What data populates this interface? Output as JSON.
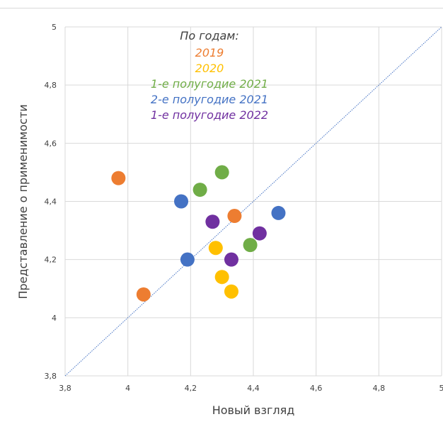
{
  "chart_data": {
    "type": "scatter",
    "title": "",
    "xlabel": "Новый взгляд",
    "ylabel": "Представление о применимости",
    "xlim": [
      3.8,
      5
    ],
    "ylim": [
      3.8,
      5
    ],
    "x_ticks": [
      "3,8",
      "4",
      "4,2",
      "4,4",
      "4,6",
      "4,8",
      "5"
    ],
    "y_ticks": [
      "3,8",
      "4",
      "4,2",
      "4,4",
      "4,6",
      "4,8",
      "5"
    ],
    "grid": true,
    "diagonal_reference_line": true,
    "legend": {
      "placement": "top-center",
      "heading": "По годам:",
      "heading_color": "#404040"
    },
    "series": [
      {
        "name": "2019",
        "color": "#ED7D31",
        "points": [
          {
            "x": 3.97,
            "y": 4.48
          },
          {
            "x": 4.34,
            "y": 4.35
          },
          {
            "x": 4.05,
            "y": 4.08
          }
        ]
      },
      {
        "name": "2020",
        "color": "#FFC000",
        "points": [
          {
            "x": 4.28,
            "y": 4.24
          },
          {
            "x": 4.3,
            "y": 4.14
          },
          {
            "x": 4.33,
            "y": 4.09
          }
        ]
      },
      {
        "name": "1-е полугодие 2021",
        "color": "#70AD47",
        "points": [
          {
            "x": 4.3,
            "y": 4.5
          },
          {
            "x": 4.23,
            "y": 4.44
          },
          {
            "x": 4.39,
            "y": 4.25
          }
        ]
      },
      {
        "name": "2-е полугодие 2021",
        "color": "#4472C4",
        "points": [
          {
            "x": 4.17,
            "y": 4.4
          },
          {
            "x": 4.48,
            "y": 4.36
          },
          {
            "x": 4.19,
            "y": 4.2
          }
        ]
      },
      {
        "name": "1-е полугодие 2022",
        "color": "#7030A0",
        "points": [
          {
            "x": 4.27,
            "y": 4.33
          },
          {
            "x": 4.42,
            "y": 4.29
          },
          {
            "x": 4.33,
            "y": 4.2
          }
        ]
      }
    ]
  }
}
